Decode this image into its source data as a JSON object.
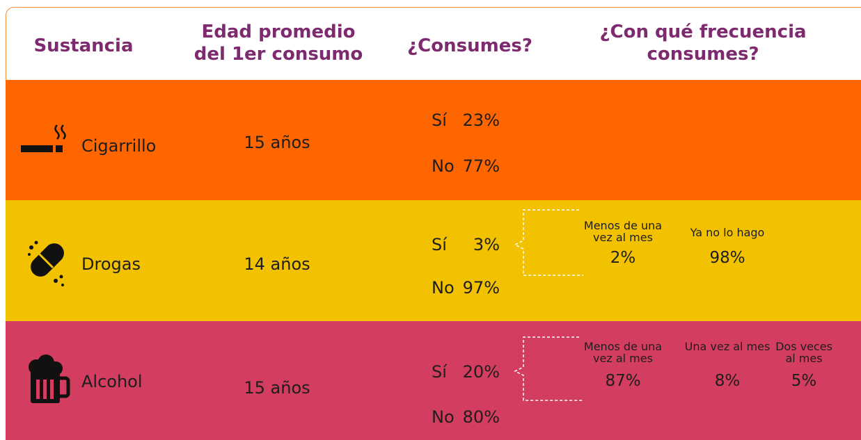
{
  "header": {
    "columns": [
      "Sustancia",
      "Edad promedio del 1er consumo",
      "¿Consumes?",
      "¿Con qué frecuencia consumes?"
    ]
  },
  "rows": [
    {
      "substance": "Cigarrillo",
      "age": "15 años",
      "yes": {
        "label": "Sí",
        "value": "23%"
      },
      "no": {
        "label": "No",
        "value": "77%"
      },
      "frequency": []
    },
    {
      "substance": "Drogas",
      "age": "14 años",
      "yes": {
        "label": "Sí",
        "value": "3%"
      },
      "no": {
        "label": "No",
        "value": "97%"
      },
      "frequency": [
        {
          "label": "Menos de una vez al mes",
          "value": "2%"
        },
        {
          "label": "Ya no lo hago",
          "value": "98%"
        }
      ]
    },
    {
      "substance": "Alcohol",
      "age": "15 años",
      "yes": {
        "label": "Sí",
        "value": "20%"
      },
      "no": {
        "label": "No",
        "value": "80%"
      },
      "frequency": [
        {
          "label": "Menos de una vez al mes",
          "value": "87%"
        },
        {
          "label": "Una vez al mes",
          "value": "8%"
        },
        {
          "label": "Dos veces al mes",
          "value": "5%"
        }
      ]
    }
  ]
}
